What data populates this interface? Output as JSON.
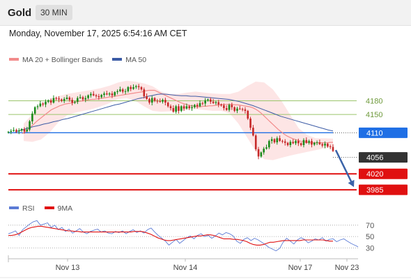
{
  "header": {
    "symbol": "Gold",
    "timeframe": "30 MIN",
    "datetime": "Monday, November 17, 2025 6:54:16 AM CET"
  },
  "colors": {
    "up": "#1a8a1a",
    "down": "#c62828",
    "ma20": "#f28b8b",
    "bollinger": "#fde0e0",
    "ma50": "#3b5ba5",
    "resistance": "#9bc56b",
    "pivot": "#1f6fe5",
    "support": "#e01010",
    "current": "#333333",
    "rsi": "#5b7bd5",
    "rsi_ma": "#e01010"
  },
  "legend": {
    "ma20": "MA 20 + Bollinger Bands",
    "ma50": "MA 50",
    "rsi": "RSI",
    "rsi_ma": "9MA"
  },
  "chart_data": [
    {
      "type": "candlestick",
      "title": "Gold",
      "timeframe": "30 MIN",
      "x_tick_labels": [
        "Nov 13",
        "Nov 14",
        "Nov 17",
        "Nov 23"
      ],
      "ylim": [
        3973,
        4248
      ],
      "grid": false,
      "legend_position": "top-left",
      "closes": [
        4112,
        4114,
        4116,
        4113,
        4115,
        4118,
        4113,
        4117,
        4135,
        4152,
        4166,
        4168,
        4174,
        4172,
        4178,
        4181,
        4176,
        4186,
        4185,
        4183,
        4180,
        4184,
        4187,
        4182,
        4176,
        4178,
        4186,
        4188,
        4183,
        4186,
        4192,
        4195,
        4192,
        4190,
        4188,
        4193,
        4196,
        4194,
        4196,
        4192,
        4199,
        4201,
        4205,
        4200,
        4201,
        4210,
        4206,
        4210,
        4212,
        4210,
        4205,
        4190,
        4184,
        4176,
        4186,
        4180,
        4179,
        4178,
        4182,
        4176,
        4168,
        4164,
        4156,
        4168,
        4158,
        4168,
        4163,
        4168,
        4164,
        4166,
        4171,
        4168,
        4175,
        4174,
        4181,
        4183,
        4178,
        4175,
        4177,
        4172,
        4170,
        4164,
        4160,
        4171,
        4166,
        4158,
        4163,
        4162,
        4161,
        4158,
        4141,
        4121,
        4104,
        4074,
        4058,
        4067,
        4075,
        4078,
        4092,
        4096,
        4089,
        4098,
        4092,
        4091,
        4088,
        4083,
        4090,
        4087,
        4092,
        4087,
        4083,
        4094,
        4088,
        4092,
        4084,
        4088,
        4089,
        4085,
        4082,
        4086,
        4080,
        4079,
        4070
      ],
      "ma20": [
        4108,
        4112,
        4117,
        4123,
        4129,
        4135,
        4140,
        4145,
        4150,
        4155,
        4160,
        4163,
        4166,
        4169,
        4171,
        4173,
        4174,
        4175,
        4176,
        4178,
        4179,
        4180,
        4181,
        4182,
        4183,
        4183,
        4184,
        4185,
        4186,
        4187,
        4188,
        4189,
        4190,
        4191,
        4192,
        4193,
        4194,
        4195,
        4196,
        4197,
        4198,
        4199,
        4200,
        4202,
        4203,
        4203,
        4203,
        4200,
        4197,
        4194,
        4191,
        4188,
        4185,
        4182,
        4179,
        4176,
        4174,
        4172,
        4170,
        4169,
        4168,
        4167,
        4167,
        4168,
        4168,
        4169,
        4169,
        4170,
        4171,
        4171,
        4172,
        4172,
        4172,
        4172,
        4171,
        4171,
        4170,
        4169,
        4168,
        4167,
        4165,
        4162,
        4158,
        4153,
        4147,
        4141,
        4135,
        4129,
        4123,
        4117,
        4112,
        4107,
        4103,
        4100,
        4097,
        4095,
        4093,
        4091,
        4090,
        4089,
        4088,
        4088,
        4088,
        4088,
        4088,
        4088,
        4088,
        4089,
        4089
      ],
      "ma50": [
        4112,
        4115,
        4118,
        4121,
        4124,
        4126,
        4129,
        4131,
        4134,
        4136,
        4139,
        4141,
        4144,
        4147,
        4150,
        4153,
        4156,
        4159,
        4162,
        4165,
        4168,
        4171,
        4173,
        4176,
        4179,
        4182,
        4185,
        4187,
        4190,
        4192,
        4194,
        4195,
        4194,
        4193,
        4192,
        4191,
        4191,
        4190,
        4190,
        4189,
        4188,
        4187,
        4186,
        4185,
        4184,
        4183,
        4181,
        4179,
        4176,
        4173,
        4170,
        4166,
        4162,
        4158,
        4154,
        4150,
        4146,
        4143,
        4140,
        4137,
        4134,
        4131,
        4128,
        4125,
        4122,
        4119,
        4116,
        4114
      ],
      "bands_upper": [
        4130,
        4150,
        4172,
        4183,
        4190,
        4195,
        4198,
        4201,
        4204,
        4208,
        4213,
        4220,
        4224,
        4222,
        4218,
        4212,
        4200,
        4195,
        4195,
        4198,
        4200,
        4198,
        4196,
        4195,
        4195,
        4200,
        4212,
        4222,
        4220,
        4205,
        4180,
        4150,
        4120,
        4105,
        4098,
        4098,
        4097
      ],
      "bands_lower": [
        4092,
        4090,
        4095,
        4110,
        4132,
        4148,
        4154,
        4158,
        4162,
        4168,
        4175,
        4184,
        4186,
        4180,
        4168,
        4158,
        4156,
        4157,
        4158,
        4160,
        4162,
        4160,
        4158,
        4158,
        4152,
        4130,
        4100,
        4070,
        4052,
        4050,
        4055,
        4060,
        4064,
        4068,
        4072,
        4076,
        4080
      ],
      "levels": {
        "resistance_2": 4180,
        "resistance_1": 4150,
        "pivot": 4110,
        "current": 4056,
        "support_1": 4020,
        "support_2": 3985
      },
      "forecast": {
        "from": 4072,
        "to": 3985,
        "direction": "down"
      },
      "labels": {
        "resistance_2": "4180",
        "resistance_1": "4150",
        "pivot": "4110",
        "current": "4056",
        "support_1": "4020",
        "support_2": "3985"
      }
    },
    {
      "type": "line",
      "title": "",
      "series": [
        {
          "name": "RSI",
          "values": [
            55,
            57,
            60,
            52,
            62,
            67,
            72,
            76,
            78,
            70,
            72,
            74,
            66,
            70,
            62,
            66,
            59,
            63,
            56,
            60,
            64,
            58,
            55,
            59,
            61,
            63,
            58,
            60,
            56,
            55,
            59,
            57,
            60,
            55,
            59,
            62,
            57,
            60,
            56,
            62,
            65,
            58,
            52,
            47,
            42,
            35,
            40,
            45,
            38,
            43,
            48,
            51,
            46,
            52,
            55,
            50,
            52,
            47,
            51,
            56,
            53,
            57,
            55,
            51,
            42,
            38,
            45,
            48,
            43,
            47,
            44,
            40,
            36,
            31,
            28,
            25,
            29,
            40,
            47,
            42,
            37,
            44,
            48,
            45,
            39,
            42,
            46,
            44,
            48,
            42,
            45,
            46,
            41,
            44,
            46,
            42,
            38,
            35,
            32
          ]
        },
        {
          "name": "9MA",
          "values": [
            52,
            52,
            53,
            55,
            58,
            61,
            64,
            66,
            67,
            68,
            68,
            67,
            66,
            65,
            64,
            63,
            62,
            61,
            60,
            60,
            59,
            59,
            58,
            58,
            58,
            58,
            58,
            58,
            58,
            58,
            58,
            58,
            58,
            58,
            58,
            58,
            58,
            58,
            59,
            59,
            59,
            58,
            56,
            54,
            51,
            48,
            46,
            44,
            43,
            43,
            44,
            45,
            46,
            47,
            48,
            49,
            50,
            51,
            51,
            52,
            53,
            53,
            52,
            50,
            48,
            46,
            46,
            46,
            45,
            45,
            44,
            43,
            41,
            38,
            36,
            35,
            35,
            36,
            38,
            40,
            40,
            41,
            42,
            43,
            43,
            43,
            43,
            43,
            43,
            44,
            44,
            44,
            44,
            44,
            44,
            44,
            43,
            42,
            42
          ]
        }
      ],
      "ylim": [
        22,
        82
      ],
      "y_tick_labels": [
        "70",
        "50",
        "30"
      ],
      "y_ticks": [
        70,
        50,
        30
      ],
      "legend_position": "top-left"
    }
  ]
}
